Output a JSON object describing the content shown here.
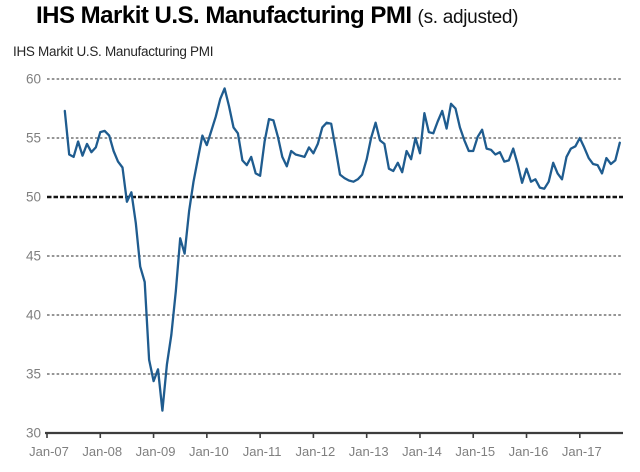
{
  "header": {
    "title": "IHS Markit U.S. Manufacturing PMI",
    "title_suffix": "(s. adjusted)"
  },
  "chart_data": {
    "type": "line",
    "title": "IHS Markit U.S. Manufacturing PMI (s. adjusted)",
    "series_name": "IHS Markit U.S. Manufacturing PMI",
    "xlabel": "",
    "ylabel": "",
    "ylim": [
      30,
      60
    ],
    "yticks": [
      30,
      35,
      40,
      45,
      50,
      55,
      60
    ],
    "reference_line": 50,
    "grid": "horizontal-dashed",
    "legend": "none",
    "xticklabels": [
      "Jan-07",
      "Jan-08",
      "Jan-09",
      "Jan-10",
      "Jan-11",
      "Jan-12",
      "Jan-13",
      "Jan-14",
      "Jan-15",
      "Jan-16",
      "Jan-17"
    ],
    "xtick_month_indices": [
      0,
      12,
      24,
      36,
      48,
      60,
      72,
      84,
      96,
      108,
      120
    ],
    "start_month_offset_from_jan07": 4,
    "frequency": "monthly",
    "values": [
      57.3,
      53.6,
      53.4,
      54.7,
      53.5,
      54.5,
      53.8,
      54.2,
      55.5,
      55.6,
      55.2,
      53.9,
      53.0,
      52.5,
      49.6,
      50.4,
      47.8,
      44.1,
      42.8,
      36.2,
      34.4,
      35.4,
      31.9,
      35.8,
      38.3,
      42.0,
      46.5,
      45.2,
      48.8,
      51.3,
      53.3,
      55.2,
      54.4,
      55.6,
      56.8,
      58.3,
      59.2,
      57.7,
      55.9,
      55.4,
      53.1,
      52.7,
      53.4,
      52.0,
      51.8,
      54.7,
      56.6,
      56.5,
      55.1,
      53.4,
      52.6,
      53.9,
      53.6,
      53.5,
      53.4,
      54.2,
      53.7,
      54.5,
      55.9,
      56.3,
      56.2,
      54.1,
      51.9,
      51.6,
      51.4,
      51.3,
      51.5,
      51.9,
      53.2,
      55.0,
      56.3,
      54.8,
      54.5,
      52.4,
      52.2,
      52.9,
      52.1,
      53.9,
      53.2,
      55.0,
      53.7,
      57.1,
      55.5,
      55.4,
      56.4,
      57.3,
      55.8,
      57.9,
      57.5,
      55.9,
      54.8,
      53.9,
      53.9,
      55.1,
      55.7,
      54.1,
      54.0,
      53.6,
      53.8,
      53.0,
      53.1,
      54.1,
      52.8,
      51.2,
      52.4,
      51.3,
      51.5,
      50.8,
      50.7,
      51.3,
      52.9,
      52.0,
      51.5,
      53.4,
      54.1,
      54.3,
      55.0,
      54.2,
      53.3,
      52.8,
      52.7,
      52.0,
      53.3,
      52.8,
      53.1,
      54.6
    ],
    "line_color": "#1f5c8f"
  },
  "colors": {
    "background": "#ffffff",
    "grid": "#2e2e2e",
    "reference_grid": "#141414",
    "axis": "#3d3d3d",
    "tick_label": "#7f7f7f",
    "line": "#1f5c8f"
  }
}
